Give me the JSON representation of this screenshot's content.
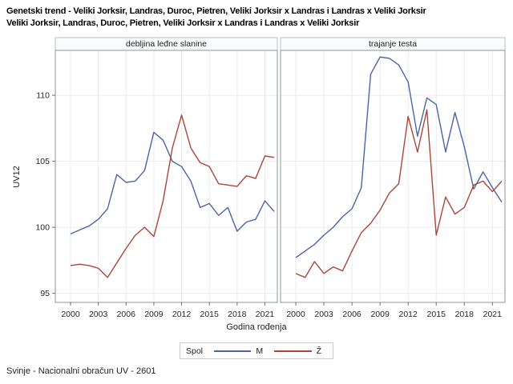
{
  "title": {
    "line1": "Genetski trend - Veliki Jorksir, Landras, Duroc, Pietren, Veliki Jorksir x Landras i Landras x Veliki Jorksir",
    "line2": "Veliki Jorksir, Landras, Duroc, Pietren, Veliki Jorksir x Landras i Landras x Veliki Jorksir"
  },
  "footer": {
    "text": "Svinje - Nacionalni obračun UV - 2601"
  },
  "legend": {
    "title": "Spol",
    "items": [
      {
        "label": "M",
        "color": "#4a64a8"
      },
      {
        "label": "Ž",
        "color": "#ad443a"
      }
    ]
  },
  "colors": {
    "series_m": "#4a64a8",
    "series_z": "#ad443a",
    "panel_border": "#8f949b",
    "header_fill": "#fafbfd",
    "grid": "#ebebee"
  },
  "chart_data": {
    "type": "line",
    "x": [
      2000,
      2001,
      2002,
      2003,
      2004,
      2005,
      2006,
      2007,
      2008,
      2009,
      2010,
      2011,
      2012,
      2013,
      2014,
      2015,
      2016,
      2017,
      2018,
      2019,
      2020,
      2021,
      2022
    ],
    "xticks": [
      2000,
      2003,
      2006,
      2009,
      2012,
      2015,
      2018,
      2021
    ],
    "yticks": [
      95,
      100,
      105,
      110
    ],
    "ylim": [
      94.3,
      113.4
    ],
    "xlabel": "Godina rođenja",
    "ylabel": "UV12",
    "legend_position": "bottom",
    "grid": true,
    "panels": [
      {
        "title": "debljina leđne slanine",
        "series": [
          {
            "name": "M",
            "color": "#4a64a8",
            "values": [
              99.5,
              99.8,
              100.1,
              100.6,
              101.4,
              104.0,
              103.4,
              103.5,
              104.3,
              107.2,
              106.6,
              105.0,
              104.6,
              103.5,
              101.5,
              101.8,
              100.9,
              101.5,
              99.7,
              100.4,
              100.6,
              102.0,
              101.2
            ]
          },
          {
            "name": "Ž",
            "color": "#ad443a",
            "values": [
              97.1,
              97.2,
              97.1,
              96.9,
              96.2,
              97.3,
              98.4,
              99.4,
              100.0,
              99.3,
              102.0,
              106.0,
              108.5,
              106.0,
              104.9,
              104.6,
              103.3,
              103.2,
              103.1,
              103.9,
              103.7,
              105.4,
              105.3
            ]
          }
        ]
      },
      {
        "title": "trajanje testa",
        "series": [
          {
            "name": "M",
            "color": "#4a64a8",
            "values": [
              97.7,
              98.2,
              98.7,
              99.4,
              100.0,
              100.8,
              101.4,
              103.0,
              111.6,
              112.9,
              112.8,
              112.3,
              111.0,
              106.9,
              109.8,
              109.3,
              105.7,
              108.7,
              106.1,
              102.9,
              104.2,
              103.0,
              101.9
            ]
          },
          {
            "name": "Ž",
            "color": "#ad443a",
            "values": [
              96.5,
              96.2,
              97.4,
              96.5,
              97.0,
              96.7,
              98.2,
              99.6,
              100.3,
              101.3,
              102.6,
              103.3,
              108.4,
              105.7,
              108.9,
              99.4,
              102.3,
              101.0,
              101.5,
              103.2,
              103.5,
              102.7,
              103.5
            ]
          }
        ]
      }
    ]
  }
}
